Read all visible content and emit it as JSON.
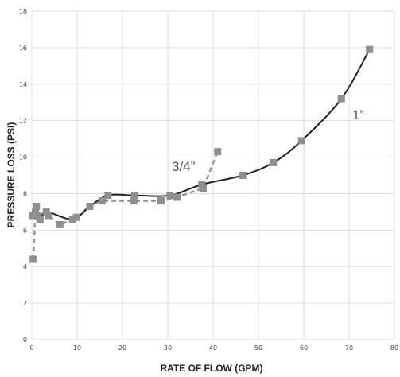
{
  "chart_data": {
    "type": "scatter",
    "title": "",
    "xlabel": "RATE OF FLOW (GPM)",
    "ylabel": "PRESSURE LOSS (PSI)",
    "xlim": [
      0,
      80
    ],
    "ylim": [
      0,
      18
    ],
    "xticks": [
      "0",
      "10",
      "20",
      "30",
      "40",
      "50",
      "60",
      "70",
      "80"
    ],
    "yticks": [
      "0",
      "2",
      "4",
      "6",
      "8",
      "10",
      "12",
      "14",
      "16",
      "18"
    ],
    "grid": true,
    "colors": {
      "line_one_inch": "#222222",
      "line_three_quarter": "#999999",
      "marker": "#8f8f8f"
    },
    "annotations": {
      "three_quarter": "3/4”",
      "one_inch": "1”"
    },
    "series": [
      {
        "points": [
          [
            0.3,
            4.4
          ],
          [
            0.8,
            7.0
          ],
          [
            1.3,
            6.8
          ],
          [
            3.6,
            6.8
          ],
          [
            6.2,
            6.3
          ],
          [
            9.8,
            6.7
          ],
          [
            12.8,
            7.3
          ],
          [
            15.5,
            7.6
          ],
          [
            22.5,
            7.6
          ],
          [
            28.5,
            7.6
          ],
          [
            32.0,
            7.8
          ],
          [
            37.8,
            8.3
          ],
          [
            41.0,
            10.3
          ]
        ],
        "style": "dashed"
      },
      {
        "points": [
          [
            0.2,
            6.8
          ],
          [
            1.0,
            7.3
          ],
          [
            1.8,
            6.6
          ],
          [
            3.2,
            7.0
          ],
          [
            9.0,
            6.6
          ],
          [
            12.8,
            7.3
          ],
          [
            16.8,
            7.9
          ],
          [
            22.7,
            7.9
          ],
          [
            30.5,
            7.9
          ],
          [
            37.5,
            8.5
          ],
          [
            46.5,
            9.0
          ],
          [
            53.3,
            9.7
          ],
          [
            59.5,
            10.9
          ],
          [
            68.3,
            13.2
          ],
          [
            74.5,
            15.9
          ]
        ],
        "style": "solid"
      }
    ]
  }
}
